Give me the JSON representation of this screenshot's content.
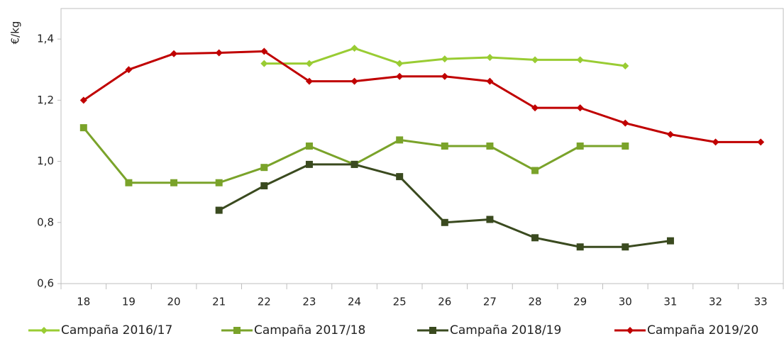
{
  "chart_data": {
    "type": "line",
    "ylabel": "€/kg",
    "categories": [
      "18",
      "19",
      "20",
      "21",
      "22",
      "23",
      "24",
      "25",
      "26",
      "27",
      "28",
      "29",
      "30",
      "31",
      "32",
      "33"
    ],
    "series": [
      {
        "name": "Campaña 2016/17",
        "color": "#99cc33",
        "marker": "diamond",
        "values": [
          null,
          null,
          null,
          null,
          1.32,
          1.32,
          1.37,
          1.32,
          1.335,
          1.34,
          1.332,
          1.332,
          1.312,
          null,
          null,
          null
        ]
      },
      {
        "name": "Campaña 2017/18",
        "color": "#7aa32a",
        "marker": "square",
        "values": [
          1.11,
          0.93,
          0.93,
          0.93,
          0.98,
          1.05,
          0.99,
          1.07,
          1.05,
          1.05,
          0.97,
          1.05,
          1.05,
          null,
          null,
          null
        ]
      },
      {
        "name": "Campaña 2018/19",
        "color": "#3a4a1f",
        "marker": "square",
        "values": [
          null,
          null,
          null,
          0.84,
          0.92,
          0.99,
          0.99,
          0.95,
          0.8,
          0.81,
          0.75,
          0.72,
          0.72,
          0.74,
          null,
          null
        ]
      },
      {
        "name": "Campaña 2019/20",
        "color": "#c00000",
        "marker": "diamond",
        "values": [
          1.2,
          1.3,
          1.352,
          1.355,
          1.36,
          1.262,
          1.262,
          1.278,
          1.278,
          1.262,
          1.175,
          1.175,
          1.125,
          1.088,
          1.063,
          1.063
        ]
      }
    ],
    "ylim": [
      0.6,
      1.5
    ],
    "yticks": [
      {
        "value": 0.6,
        "label": "0,6"
      },
      {
        "value": 0.8,
        "label": "0,8"
      },
      {
        "value": 1.0,
        "label": "1,0"
      },
      {
        "value": 1.2,
        "label": "1,2"
      },
      {
        "value": 1.4,
        "label": "1,4"
      }
    ],
    "grid": false,
    "legend": "bottom"
  }
}
